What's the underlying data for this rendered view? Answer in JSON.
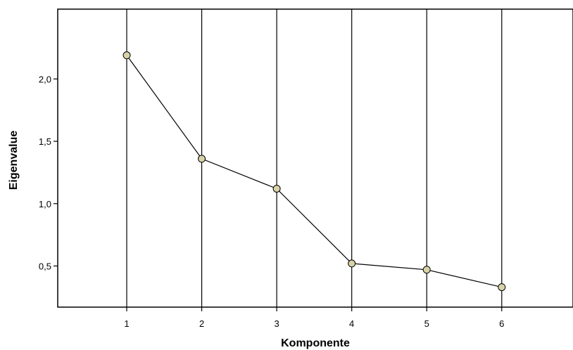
{
  "chart_data": {
    "type": "line",
    "xlabel": "Komponente",
    "ylabel": "Eigenvalue",
    "x": [
      1,
      2,
      3,
      4,
      5,
      6
    ],
    "y": [
      2.19,
      1.36,
      1.12,
      0.52,
      0.47,
      0.33
    ],
    "x_ticks": [
      "1",
      "2",
      "3",
      "4",
      "5",
      "6"
    ],
    "y_ticks": [
      {
        "value": 0.5,
        "label": "0,5"
      },
      {
        "value": 1.0,
        "label": "1,0"
      },
      {
        "value": 1.5,
        "label": "1,5"
      },
      {
        "value": 2.0,
        "label": "2,0"
      }
    ],
    "xlim": [
      0.08,
      6.95
    ],
    "ylim": [
      0.17,
      2.56
    ],
    "vertical_gridlines": true,
    "horizontal_gridlines": false,
    "marker_color": "#d8d2a8",
    "line_color": "#000000"
  }
}
